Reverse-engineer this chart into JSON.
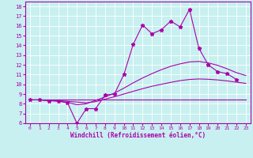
{
  "title": "",
  "xlabel": "Windchill (Refroidissement éolien,°C)",
  "ylabel": "",
  "xlim": [
    -0.5,
    23.5
  ],
  "ylim": [
    6,
    18.5
  ],
  "xticks": [
    0,
    1,
    2,
    3,
    4,
    5,
    6,
    7,
    8,
    9,
    10,
    11,
    12,
    13,
    14,
    15,
    16,
    17,
    18,
    19,
    20,
    21,
    22,
    23
  ],
  "yticks": [
    6,
    7,
    8,
    9,
    10,
    11,
    12,
    13,
    14,
    15,
    16,
    17,
    18
  ],
  "bg_color": "#c8f0f0",
  "line_color": "#aa00aa",
  "grid_color": "#ffffff",
  "series": [
    {
      "x": [
        0,
        1,
        2,
        3,
        4,
        5,
        6,
        7,
        8,
        9,
        10,
        11,
        12,
        13,
        14,
        15,
        16,
        17,
        18,
        19,
        20,
        21,
        22
      ],
      "y": [
        8.4,
        8.4,
        8.3,
        8.3,
        8.1,
        6.0,
        7.5,
        7.5,
        8.9,
        9.0,
        11.0,
        14.1,
        16.1,
        15.2,
        15.6,
        16.5,
        15.9,
        17.7,
        13.7,
        12.0,
        11.3,
        11.1,
        10.5
      ],
      "marker": true
    },
    {
      "x": [
        0,
        1,
        2,
        3,
        4,
        5,
        6,
        7,
        8,
        9,
        10,
        11,
        12,
        13,
        14,
        15,
        16,
        17,
        18,
        19,
        20,
        21,
        22,
        23
      ],
      "y": [
        8.4,
        8.4,
        8.35,
        8.25,
        8.15,
        7.9,
        8.0,
        8.35,
        8.7,
        9.1,
        9.6,
        10.15,
        10.65,
        11.1,
        11.5,
        11.85,
        12.1,
        12.3,
        12.35,
        12.2,
        11.95,
        11.6,
        11.2,
        10.9
      ],
      "marker": false
    },
    {
      "x": [
        0,
        1,
        2,
        3,
        4,
        5,
        6,
        7,
        8,
        9,
        10,
        11,
        12,
        13,
        14,
        15,
        16,
        17,
        18,
        19,
        20,
        21,
        22,
        23
      ],
      "y": [
        8.4,
        8.4,
        8.38,
        8.32,
        8.25,
        8.18,
        8.1,
        8.22,
        8.48,
        8.72,
        9.0,
        9.28,
        9.55,
        9.8,
        10.0,
        10.2,
        10.38,
        10.5,
        10.55,
        10.52,
        10.45,
        10.35,
        10.22,
        10.1
      ],
      "marker": false
    },
    {
      "x": [
        0,
        23
      ],
      "y": [
        8.4,
        8.4
      ],
      "marker": false
    }
  ]
}
